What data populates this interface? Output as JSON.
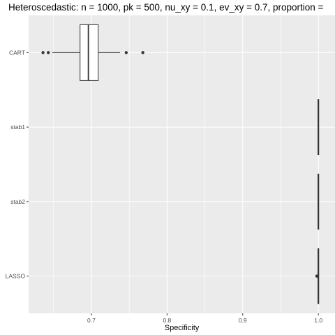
{
  "chart_data": {
    "type": "boxplot",
    "title": "Heteroscedastic: n = 1000, pk = 500, nu_xy = 0.1, ev_xy = 0.7, proportion =",
    "xlabel": "Specificity",
    "ylabel": "",
    "xlim": [
      0.617,
      1.022
    ],
    "x_ticks": [
      0.7,
      0.8,
      0.9,
      1.0
    ],
    "x_tick_labels": [
      "0.7",
      "0.8",
      "0.9",
      "1.0"
    ],
    "categories": [
      "CART",
      "stab1",
      "stab2",
      "LASSO"
    ],
    "grid": true,
    "legend": "none",
    "colors": {
      "panel": "#ebebeb",
      "grid": "#ffffff",
      "box_fill": "#ffffff",
      "stroke": "#333333",
      "tick_text": "#4d4d4d"
    },
    "boxes": [
      {
        "name": "CART",
        "whisker_low": 0.648,
        "q1": 0.685,
        "median": 0.696,
        "q3": 0.709,
        "whisker_high": 0.738,
        "outliers": [
          0.636,
          0.643,
          0.746,
          0.768
        ]
      },
      {
        "name": "stab1",
        "whisker_low": 1.0,
        "q1": 1.0,
        "median": 1.0,
        "q3": 1.0,
        "whisker_high": 1.0,
        "outliers": []
      },
      {
        "name": "stab2",
        "whisker_low": 1.0,
        "q1": 1.0,
        "median": 1.0,
        "q3": 1.0,
        "whisker_high": 1.0,
        "outliers": []
      },
      {
        "name": "LASSO",
        "whisker_low": 1.0,
        "q1": 1.0,
        "median": 1.0,
        "q3": 1.0,
        "whisker_high": 1.0,
        "outliers": [
          0.998
        ]
      }
    ]
  }
}
